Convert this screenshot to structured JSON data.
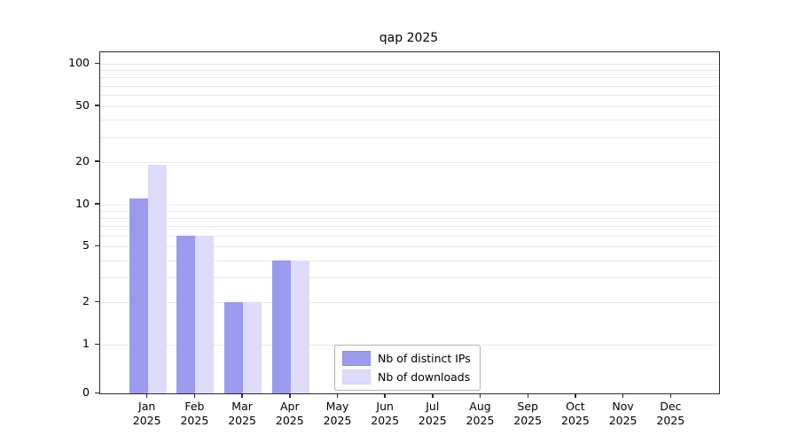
{
  "title": "qap 2025",
  "legend": {
    "items": [
      {
        "label": "Nb of distinct IPs",
        "color": "#9a9bee",
        "border": "#8f90e6"
      },
      {
        "label": "Nb of downloads",
        "color": "#dcdcf8",
        "border": "#d2d2f4"
      }
    ]
  },
  "axes": {
    "y_ticks": [
      {
        "label": "100",
        "value": 100
      },
      {
        "label": "50",
        "value": 50
      },
      {
        "label": "20",
        "value": 20
      },
      {
        "label": "10",
        "value": 10
      },
      {
        "label": "5",
        "value": 5
      },
      {
        "label": "2",
        "value": 2
      },
      {
        "label": "1",
        "value": 1
      },
      {
        "label": "0",
        "value": 0
      }
    ],
    "x_tick_year": "2025",
    "x_tick_months": [
      "Jan",
      "Feb",
      "Mar",
      "Apr",
      "May",
      "Jun",
      "Jul",
      "Aug",
      "Sep",
      "Oct",
      "Nov",
      "Dec"
    ]
  },
  "chart_data": {
    "type": "bar",
    "title": "qap 2025",
    "categories": [
      "Jan 2025",
      "Feb 2025",
      "Mar 2025",
      "Apr 2025",
      "May 2025",
      "Jun 2025",
      "Jul 2025",
      "Aug 2025",
      "Sep 2025",
      "Oct 2025",
      "Nov 2025",
      "Dec 2025"
    ],
    "series": [
      {
        "name": "Nb of distinct IPs",
        "color": "#9a9bee",
        "values": [
          11,
          6,
          2,
          4,
          0,
          0,
          0,
          0,
          0,
          0,
          0,
          0
        ]
      },
      {
        "name": "Nb of downloads",
        "color": "#dcdcf8",
        "values": [
          19,
          6,
          2,
          4,
          0,
          0,
          0,
          0,
          0,
          0,
          0,
          0
        ]
      }
    ],
    "xlabel": "",
    "ylabel": "",
    "yscale": "log (linear below 1 down to 0)",
    "ylim": [
      0,
      120
    ],
    "grid": "horizontal, minor+major log ticks, light gray",
    "legend_position": "inside axes, lower middle-left"
  }
}
